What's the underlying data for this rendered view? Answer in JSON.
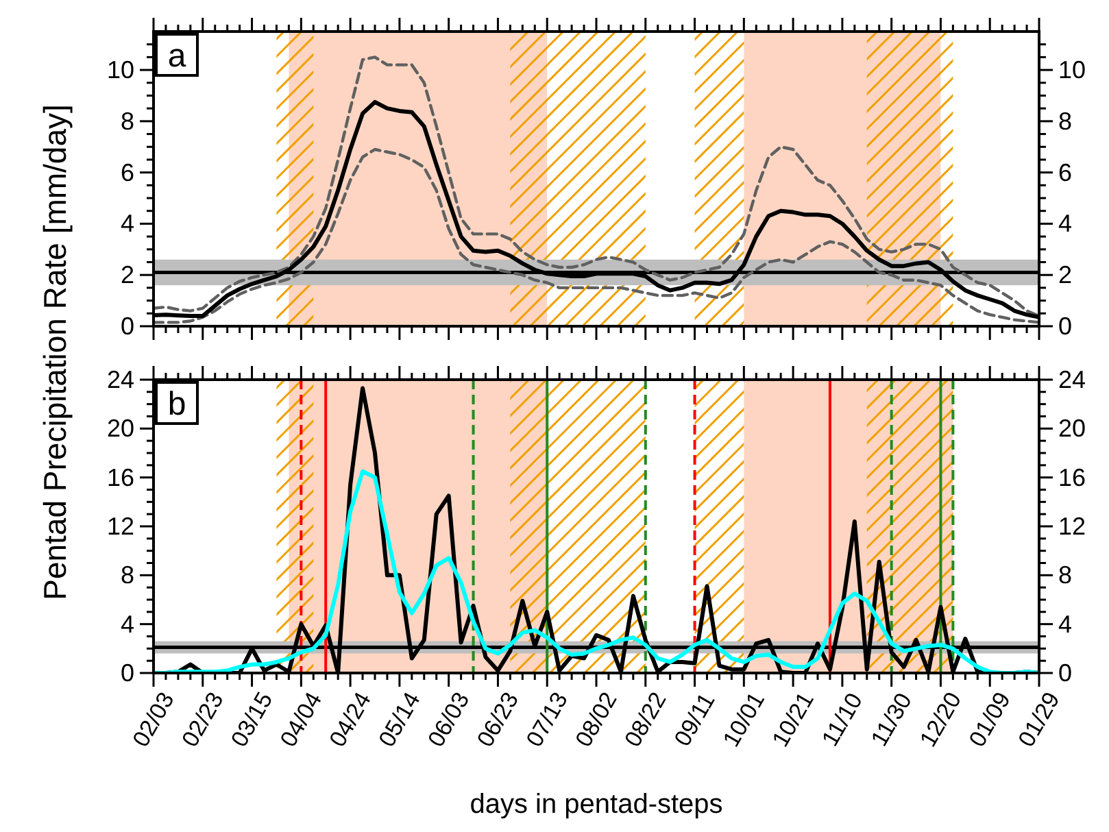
{
  "chart_data": [
    {
      "type": "line",
      "ylabel": "Pentad Precipitation Rate [mm/day]",
      "annotations": [
        "a"
      ],
      "tick_labels": "y",
      "categories": [
        "02/03",
        null,
        null,
        null,
        "02/23",
        null,
        null,
        null,
        "03/15",
        null,
        null,
        null,
        "04/04",
        null,
        null,
        null,
        "04/24",
        null,
        null,
        null,
        "05/14",
        null,
        null,
        null,
        "06/03",
        null,
        null,
        null,
        "06/23",
        null,
        null,
        null,
        "07/13",
        null,
        null,
        null,
        "08/02",
        null,
        null,
        null,
        "08/22",
        null,
        null,
        null,
        "09/11",
        null,
        null,
        null,
        "10/01",
        null,
        null,
        null,
        "10/21",
        null,
        null,
        null,
        "11/10",
        null,
        null,
        null,
        "11/30",
        null,
        null,
        null,
        "12/20",
        null,
        null,
        null,
        "01/09",
        null,
        null,
        null,
        "01/29"
      ],
      "ylim": [
        0,
        11.5
      ],
      "yticks": [
        0,
        {
          "value": 0.5,
          "label": null
        },
        {
          "value": 1,
          "label": null
        },
        {
          "value": 1.5,
          "label": null
        },
        2,
        {
          "value": 2.5,
          "label": null
        },
        {
          "value": 3,
          "label": null
        },
        {
          "value": 3.5,
          "label": null
        },
        4,
        {
          "value": 4.5,
          "label": null
        },
        {
          "value": 5,
          "label": null
        },
        {
          "value": 5.5,
          "label": null
        },
        6,
        {
          "value": 6.5,
          "label": null
        },
        {
          "value": 7,
          "label": null
        },
        {
          "value": 7.5,
          "label": null
        },
        8,
        {
          "value": 8.5,
          "label": null
        },
        {
          "value": 9,
          "label": null
        },
        {
          "value": 9.5,
          "label": null
        },
        10,
        {
          "value": 10.5,
          "label": null
        },
        {
          "value": 11,
          "label": null
        }
      ],
      "y2lim": [
        0,
        11.5
      ],
      "y2ticks": [
        0,
        {
          "value": 0.5,
          "label": null
        },
        {
          "value": 1,
          "label": null
        },
        {
          "value": 1.5,
          "label": null
        },
        2,
        {
          "value": 2.5,
          "label": null
        },
        {
          "value": 3,
          "label": null
        },
        {
          "value": 3.5,
          "label": null
        },
        4,
        {
          "value": 4.5,
          "label": null
        },
        {
          "value": 5,
          "label": null
        },
        {
          "value": 5.5,
          "label": null
        },
        6,
        {
          "value": 6.5,
          "label": null
        },
        {
          "value": 7,
          "label": null
        },
        {
          "value": 7.5,
          "label": null
        },
        8,
        {
          "value": 8.5,
          "label": null
        },
        {
          "value": 9,
          "label": null
        },
        {
          "value": 9.5,
          "label": null
        },
        10,
        {
          "value": 10.5,
          "label": null
        },
        {
          "value": 11,
          "label": null
        }
      ],
      "bands": [
        {
          "axis": "x",
          "from": "10/01",
          "to": "12/20",
          "color": "#fdd5c2"
        },
        {
          "axis": "x",
          "from": "09/11",
          "to": "10/01",
          "color": "#f0a000"
        },
        {
          "axis": "y",
          "from": 1.6,
          "to": 2.6,
          "color": "#bebebe"
        }
      ],
      "ref_lines": [
        {
          "axis": "y",
          "value": 2.1,
          "color": "#000000",
          "line_style": "solid"
        }
      ],
      "series": [
        {
          "color": "#606060",
          "line_style": "dashed",
          "values": [
            0.7,
            0.75,
            0.65,
            0.6,
            0.7,
            1.1,
            1.5,
            1.75,
            1.9,
            2.0,
            2.1,
            2.3,
            2.8,
            3.5,
            4.6,
            6.5,
            8.5,
            10.4,
            10.5,
            10.2,
            10.2,
            10.2,
            9.5,
            7.8,
            6.0,
            4.2,
            3.6,
            3.6,
            3.6,
            3.4,
            2.9,
            2.6,
            2.4,
            2.3,
            2.3,
            2.4,
            2.6,
            2.7,
            2.6,
            2.5,
            2.2,
            2.0,
            1.8,
            1.9,
            2.1,
            2.2,
            2.3,
            2.8,
            3.6,
            5.3,
            6.6,
            7.0,
            6.9,
            6.3,
            5.7,
            5.5,
            4.9,
            4.2,
            3.4,
            3.0,
            2.9,
            3.0,
            3.2,
            3.2,
            3.0,
            2.3,
            2.0,
            1.7,
            1.6,
            1.3,
            1.0,
            0.6,
            0.4
          ]
        },
        {
          "color": "#606060",
          "line_style": "dashed",
          "values": [
            0.15,
            0.15,
            0.15,
            0.2,
            0.35,
            0.6,
            0.95,
            1.25,
            1.45,
            1.6,
            1.7,
            1.85,
            2.1,
            2.5,
            3.2,
            4.4,
            5.7,
            6.6,
            6.9,
            6.8,
            6.7,
            6.5,
            6.2,
            5.3,
            3.8,
            2.8,
            2.4,
            2.3,
            2.2,
            2.1,
            2.0,
            1.8,
            1.7,
            1.5,
            1.5,
            1.5,
            1.5,
            1.5,
            1.5,
            1.4,
            1.3,
            1.2,
            1.2,
            1.2,
            1.3,
            1.2,
            1.1,
            1.3,
            1.9,
            2.2,
            2.5,
            2.6,
            2.5,
            2.8,
            3.1,
            3.3,
            3.2,
            2.9,
            2.5,
            2.1,
            2.0,
            1.8,
            1.8,
            1.7,
            1.6,
            1.2,
            0.9,
            0.6,
            0.45,
            0.35,
            0.25,
            0.2,
            0.15
          ]
        },
        {
          "color": "#000000",
          "line_style": "solid",
          "values": [
            0.43,
            0.45,
            0.42,
            0.4,
            0.4,
            0.8,
            1.2,
            1.45,
            1.65,
            1.8,
            1.95,
            2.2,
            2.6,
            3.1,
            3.9,
            5.3,
            6.9,
            8.3,
            8.75,
            8.5,
            8.4,
            8.35,
            7.8,
            6.3,
            4.9,
            3.5,
            2.95,
            2.9,
            2.95,
            2.75,
            2.45,
            2.2,
            2.05,
            2.0,
            1.95,
            1.95,
            2.05,
            2.05,
            2.05,
            2.05,
            1.95,
            1.6,
            1.4,
            1.5,
            1.7,
            1.7,
            1.65,
            1.8,
            2.4,
            3.5,
            4.3,
            4.5,
            4.45,
            4.35,
            4.35,
            4.3,
            4.0,
            3.5,
            2.95,
            2.6,
            2.35,
            2.35,
            2.45,
            2.5,
            2.2,
            1.75,
            1.4,
            1.2,
            1.05,
            0.9,
            0.6,
            0.45,
            0.35
          ]
        }
      ]
    },
    {
      "type": "line",
      "xlabel": "days in pentad-steps",
      "annotations": [
        "b"
      ],
      "categories": [
        "02/03",
        null,
        null,
        null,
        "02/23",
        null,
        null,
        null,
        "03/15",
        null,
        null,
        null,
        "04/04",
        null,
        null,
        null,
        "04/24",
        null,
        null,
        null,
        "05/14",
        null,
        null,
        null,
        "06/03",
        null,
        null,
        null,
        "06/23",
        null,
        null,
        null,
        "07/13",
        null,
        null,
        null,
        "08/02",
        null,
        null,
        null,
        "08/22",
        null,
        null,
        null,
        "09/11",
        null,
        null,
        null,
        "10/01",
        null,
        null,
        null,
        "10/21",
        null,
        null,
        null,
        "11/10",
        null,
        null,
        null,
        "11/30",
        null,
        null,
        null,
        "12/20",
        null,
        null,
        null,
        "01/09",
        null,
        null,
        null,
        "01/29"
      ],
      "ylim": [
        0,
        24
      ],
      "yticks": [
        0,
        {
          "value": 1,
          "label": null
        },
        {
          "value": 2,
          "label": null
        },
        {
          "value": 3,
          "label": null
        },
        4,
        {
          "value": 5,
          "label": null
        },
        {
          "value": 6,
          "label": null
        },
        {
          "value": 7,
          "label": null
        },
        8,
        {
          "value": 9,
          "label": null
        },
        {
          "value": 10,
          "label": null
        },
        {
          "value": 11,
          "label": null
        },
        12,
        {
          "value": 13,
          "label": null
        },
        {
          "value": 14,
          "label": null
        },
        {
          "value": 15,
          "label": null
        },
        16,
        {
          "value": 17,
          "label": null
        },
        {
          "value": 18,
          "label": null
        },
        {
          "value": 19,
          "label": null
        },
        20,
        {
          "value": 21,
          "label": null
        },
        {
          "value": 22,
          "label": null
        },
        {
          "value": 23,
          "label": null
        },
        24
      ],
      "y2lim": [
        0,
        24
      ],
      "y2ticks": [
        0,
        {
          "value": 1,
          "label": null
        },
        {
          "value": 2,
          "label": null
        },
        {
          "value": 3,
          "label": null
        },
        4,
        {
          "value": 5,
          "label": null
        },
        {
          "value": 6,
          "label": null
        },
        {
          "value": 7,
          "label": null
        },
        8,
        {
          "value": 9,
          "label": null
        },
        {
          "value": 10,
          "label": null
        },
        {
          "value": 11,
          "label": null
        },
        12,
        {
          "value": 13,
          "label": null
        },
        {
          "value": 14,
          "label": null
        },
        {
          "value": 15,
          "label": null
        },
        16,
        {
          "value": 17,
          "label": null
        },
        {
          "value": 18,
          "label": null
        },
        {
          "value": 19,
          "label": null
        },
        20,
        {
          "value": 21,
          "label": null
        },
        {
          "value": 22,
          "label": null
        },
        {
          "value": 23,
          "label": null
        },
        24
      ],
      "bands": [
        {
          "axis": "x",
          "from": "09/11",
          "to": "10/01",
          "color": "#f0a000"
        },
        {
          "axis": "y",
          "from": 1.6,
          "to": 2.6,
          "color": "#bebebe"
        }
      ],
      "ref_lines": [
        {
          "axis": "y",
          "value": 2.1,
          "color": "#000000",
          "line_style": "solid"
        }
      ],
      "series": [
        {
          "color": "#000000",
          "line_style": "solid",
          "values": [
            0,
            0,
            0.1,
            0.7,
            0,
            0,
            0,
            0,
            2.0,
            0.2,
            0.7,
            0.1,
            4.0,
            2.2,
            3.9,
            0,
            15.4,
            23.3,
            18.0,
            8.0,
            8.0,
            1.2,
            2.7,
            13.0,
            14.5,
            2.5,
            5.5,
            1.3,
            0.2,
            1.8,
            5.9,
            2.2,
            5.0,
            0.2,
            1.4,
            1.2,
            3.1,
            2.7,
            0.1,
            6.3,
            2.7,
            0.1,
            0.9,
            0.9,
            0.8,
            7.1,
            0.6,
            0.3,
            0.3,
            2.4,
            2.7,
            0.1,
            0,
            0,
            2.4,
            0.3,
            5.3,
            12.4,
            0.3,
            9.1,
            1.7,
            0.5,
            2.7,
            0.1,
            5.4,
            0.1,
            2.8,
            0.1,
            0,
            0,
            0,
            0.1,
            0
          ]
        },
        {
          "color": "#00ffff",
          "line_style": "solid",
          "values": [
            0,
            0,
            0.1,
            0.1,
            0.1,
            0.1,
            0.2,
            0.5,
            0.7,
            0.7,
            0.9,
            1.2,
            1.7,
            2.0,
            3.1,
            7.2,
            13.2,
            16.5,
            16.0,
            11.3,
            6.6,
            4.9,
            6.5,
            8.8,
            9.4,
            7.4,
            4.2,
            2.0,
            1.6,
            2.3,
            3.3,
            3.5,
            2.9,
            2.0,
            1.5,
            1.6,
            2.0,
            2.3,
            2.7,
            2.9,
            2.3,
            1.2,
            0.9,
            1.5,
            2.3,
            2.7,
            2.0,
            1.2,
            0.9,
            1.4,
            1.5,
            0.9,
            0.5,
            0.5,
            1.2,
            3.5,
            5.7,
            6.5,
            5.9,
            4.2,
            2.4,
            1.8,
            2.0,
            2.2,
            2.3,
            2.0,
            1.2,
            0.5,
            0.1,
            0,
            0,
            0.1,
            0
          ]
        }
      ]
    }
  ]
}
